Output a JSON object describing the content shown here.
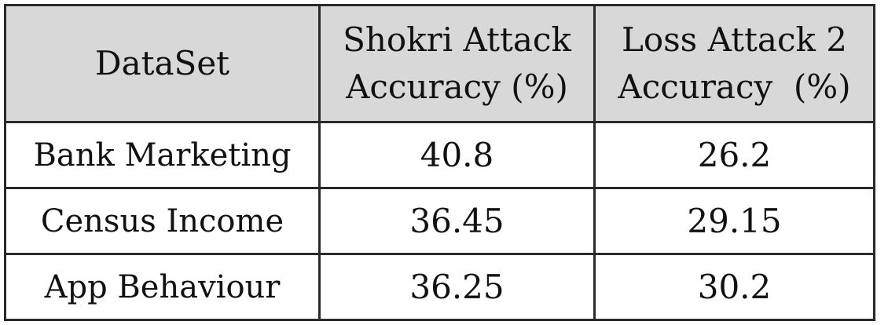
{
  "table": {
    "headers": {
      "dataset": "DataSet",
      "shokri_line1": "Shokri Attack",
      "shokri_line2": "Accuracy (%)",
      "loss_line1": "Loss Attack 2",
      "loss_line2": "Accuracy  (%)"
    },
    "rows": [
      {
        "dataset": "Bank Marketing",
        "shokri": "40.8",
        "loss": "26.2"
      },
      {
        "dataset": "Census Income",
        "shokri": "36.45",
        "loss": "29.15"
      },
      {
        "dataset": "App Behaviour",
        "shokri": "36.25",
        "loss": "30.2"
      }
    ],
    "colors": {
      "header_bg": "#d8d8d8",
      "border": "#2a2a2a",
      "body_bg": "#ffffff"
    }
  }
}
